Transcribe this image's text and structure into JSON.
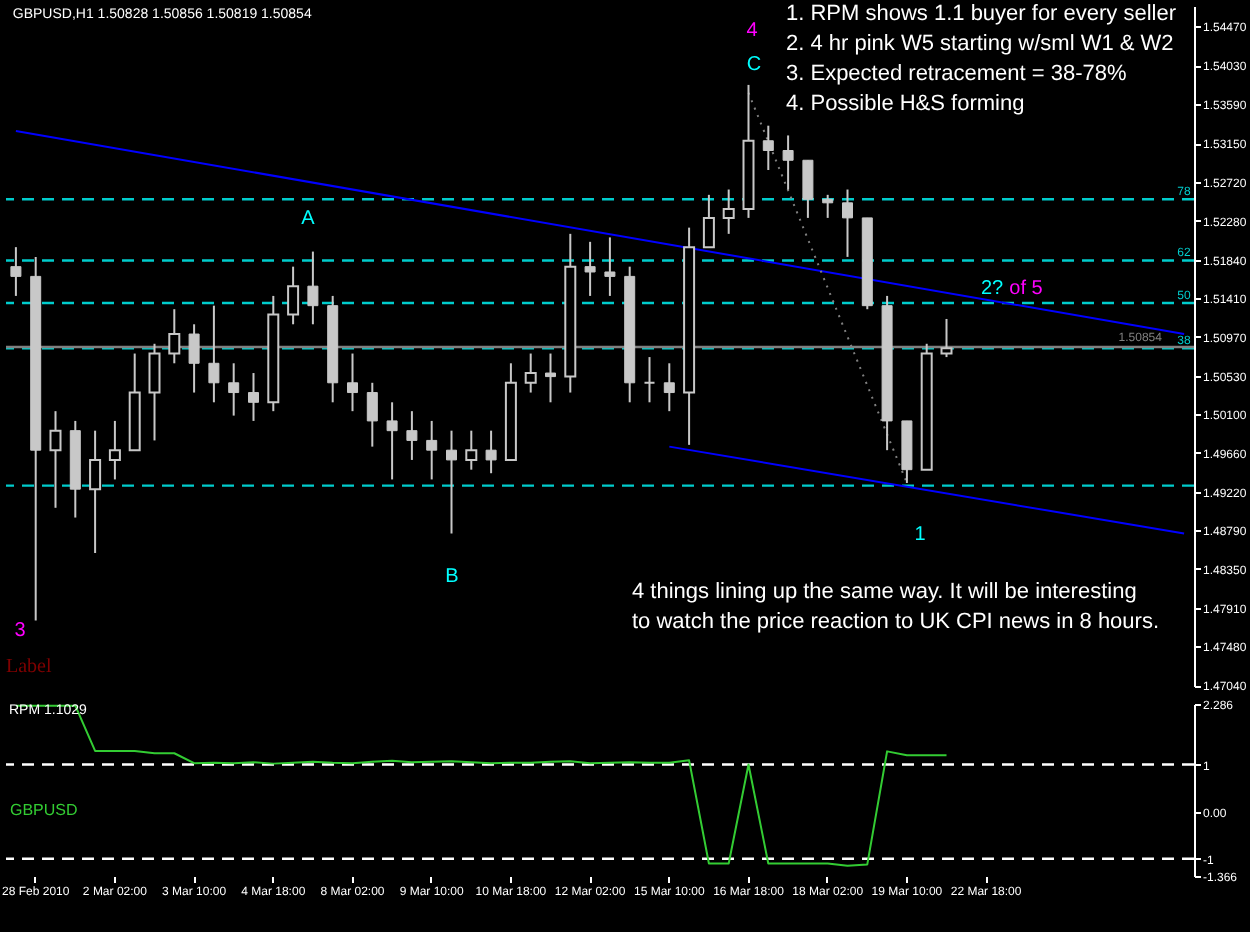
{
  "chart_data": [
    {
      "type": "candlestick",
      "title": "GBPUSD,H1 1.50828 1.50856 1.50819 1.50854",
      "color": "#c8c8c8",
      "categories": [
        null,
        null,
        null,
        null,
        null,
        null,
        null,
        null,
        null,
        null,
        null,
        null,
        null,
        null,
        null,
        null,
        null,
        null,
        null,
        null,
        null,
        null,
        null,
        null,
        null,
        null,
        null,
        null,
        null,
        null,
        null,
        null,
        null,
        null,
        null,
        null,
        null,
        null,
        null,
        null,
        null,
        null,
        null,
        null,
        null,
        null,
        null,
        null,
        null,
        null,
        null,
        null,
        null,
        null,
        null,
        null,
        null,
        null,
        null,
        null
      ],
      "ohlc": [
        [
          1.5176,
          1.5198,
          1.5143,
          1.5165
        ],
        [
          1.5165,
          1.5187,
          1.4777,
          1.4969
        ],
        [
          1.4969,
          1.5013,
          1.4904,
          1.4991
        ],
        [
          1.4991,
          1.5002,
          1.4893,
          1.4925
        ],
        [
          1.4925,
          1.4991,
          1.4853,
          1.4958
        ],
        [
          1.4958,
          1.5002,
          1.4936,
          1.4969
        ],
        [
          1.4969,
          1.5078,
          1.4969,
          1.5034
        ],
        [
          1.5034,
          1.5089,
          1.498,
          1.5078
        ],
        [
          1.5078,
          1.5128,
          1.5067,
          1.51
        ],
        [
          1.51,
          1.5111,
          1.5034,
          1.5067
        ],
        [
          1.5067,
          1.5132,
          1.5023,
          1.5045
        ],
        [
          1.5045,
          1.5067,
          1.5008,
          1.5034
        ],
        [
          1.5034,
          1.5056,
          1.5002,
          1.5023
        ],
        [
          1.5023,
          1.5143,
          1.5013,
          1.5122
        ],
        [
          1.5122,
          1.5176,
          1.5111,
          1.5154
        ],
        [
          1.5154,
          1.5193,
          1.5111,
          1.5132
        ],
        [
          1.5132,
          1.5143,
          1.5023,
          1.5045
        ],
        [
          1.5045,
          1.5078,
          1.5013,
          1.5034
        ],
        [
          1.5034,
          1.5045,
          1.4973,
          1.5002
        ],
        [
          1.5002,
          1.5023,
          1.4936,
          1.4991
        ],
        [
          1.4991,
          1.5013,
          1.4958,
          1.498
        ],
        [
          1.498,
          1.5002,
          1.4936,
          1.4969
        ],
        [
          1.4969,
          1.4991,
          1.4875,
          1.4958
        ],
        [
          1.4958,
          1.4991,
          1.4947,
          1.4969
        ],
        [
          1.4969,
          1.4991,
          1.4943,
          1.4958
        ],
        [
          1.4958,
          1.5067,
          1.4958,
          1.5045
        ],
        [
          1.5045,
          1.5078,
          1.5034,
          1.5056
        ],
        [
          1.5056,
          1.5078,
          1.5023,
          1.5052
        ],
        [
          1.5052,
          1.5213,
          1.5034,
          1.5176
        ],
        [
          1.5176,
          1.5204,
          1.5143,
          1.517
        ],
        [
          1.517,
          1.5209,
          1.5143,
          1.5165
        ],
        [
          1.5165,
          1.5176,
          1.5023,
          1.5045
        ],
        [
          1.5045,
          1.5074,
          1.5023,
          1.5045
        ],
        [
          1.5045,
          1.5067,
          1.5013,
          1.5034
        ],
        [
          1.5034,
          1.522,
          1.4975,
          1.5198
        ],
        [
          1.5198,
          1.5257,
          1.5198,
          1.5231
        ],
        [
          1.5231,
          1.5263,
          1.5213,
          1.5241
        ],
        [
          1.5241,
          1.5381,
          1.5231,
          1.5318
        ],
        [
          1.5318,
          1.5335,
          1.5285,
          1.5307
        ],
        [
          1.5307,
          1.5324,
          1.5263,
          1.5296
        ],
        [
          1.5296,
          1.5296,
          1.5231,
          1.5252
        ],
        [
          1.5252,
          1.5257,
          1.5231,
          1.5248
        ],
        [
          1.5248,
          1.5263,
          1.5187,
          1.5231
        ],
        [
          1.5231,
          1.5231,
          1.5128,
          1.5132
        ],
        [
          1.5132,
          1.5143,
          1.4969,
          1.5002
        ],
        [
          1.5002,
          1.5002,
          1.4932,
          1.4947
        ],
        [
          1.4947,
          1.5089,
          1.4947,
          1.5078
        ],
        [
          1.5078,
          1.5117,
          1.5074,
          1.5084
        ],
        null,
        null,
        null,
        null,
        null,
        null,
        null,
        null,
        null,
        null,
        null,
        null
      ],
      "series": [
        {
          "type": "line",
          "color": "#0000ff",
          "values": [
            1.5329,
            null,
            null,
            null,
            null,
            null,
            null,
            null,
            null,
            null,
            null,
            null,
            null,
            null,
            null,
            null,
            null,
            null,
            null,
            null,
            null,
            null,
            null,
            null,
            null,
            null,
            null,
            null,
            null,
            null,
            null,
            null,
            null,
            null,
            null,
            null,
            null,
            null,
            null,
            null,
            null,
            null,
            null,
            null,
            null,
            null,
            null,
            null,
            null,
            null,
            null,
            null,
            null,
            null,
            null,
            null,
            null,
            null,
            null,
            1.51
          ]
        },
        {
          "type": "line",
          "color": "#0000ff",
          "values": [
            null,
            null,
            null,
            null,
            null,
            null,
            null,
            null,
            null,
            null,
            null,
            null,
            null,
            null,
            null,
            null,
            null,
            null,
            null,
            null,
            null,
            null,
            null,
            null,
            null,
            null,
            null,
            null,
            null,
            null,
            null,
            null,
            null,
            1.4973,
            null,
            null,
            null,
            null,
            null,
            null,
            null,
            null,
            null,
            null,
            null,
            null,
            null,
            null,
            null,
            null,
            null,
            null,
            null,
            null,
            null,
            null,
            null,
            null,
            null,
            1.4875
          ]
        },
        {
          "type": "line",
          "color": "#808080",
          "line_style": "dotted",
          "values": [
            null,
            null,
            null,
            null,
            null,
            null,
            null,
            null,
            null,
            null,
            null,
            null,
            null,
            null,
            null,
            null,
            null,
            null,
            null,
            null,
            null,
            null,
            null,
            null,
            null,
            null,
            null,
            null,
            null,
            null,
            null,
            null,
            null,
            null,
            null,
            null,
            null,
            1.5372,
            null,
            null,
            null,
            null,
            null,
            null,
            null,
            1.4932,
            null,
            null,
            null,
            null,
            null,
            null,
            null,
            null,
            null,
            null,
            null,
            null,
            null,
            null
          ]
        }
      ],
      "ref_lines": [
        {
          "axis": "y",
          "value": 1.5252,
          "color": "#00cccc",
          "line_style": "dashed"
        },
        {
          "axis": "y",
          "value": 1.5183,
          "color": "#00cccc",
          "line_style": "dashed"
        },
        {
          "axis": "y",
          "value": 1.5135,
          "color": "#00cccc",
          "line_style": "dashed"
        },
        {
          "axis": "y",
          "value": 1.5084,
          "color": "#00cccc",
          "line_style": "dashed"
        },
        {
          "axis": "y",
          "value": 1.4929,
          "color": "#00cccc",
          "line_style": "dashed"
        },
        {
          "axis": "y",
          "value": 1.50854,
          "label": "1.50854",
          "color": "#808080",
          "line_style": "solid"
        }
      ],
      "annotations": [
        "A",
        "B",
        "C",
        "1",
        "2?",
        "3",
        "4",
        "of 5",
        {
          "text": "78",
          "y": 1.5252
        },
        {
          "text": "62",
          "y": 1.5183
        },
        {
          "text": "50",
          "y": 1.5135
        },
        {
          "text": "38",
          "y": 1.5084
        },
        "1.   RPM shows 1.1 buyer for every seller",
        "2.   4 hr pink W5 starting w/sml W1 & W2",
        "3.   Expected retracement = 38-78%",
        "4.   Possible H&S forming",
        "4 things lining up the same way.  It will be interesting",
        "to watch the price reaction to UK CPI news in 8 hours.",
        "Label"
      ],
      "ylim": [
        1.4703,
        1.547
      ],
      "yticks": [
        {
          "value": 1.5447,
          "label": "1.54470"
        },
        {
          "value": 1.5403,
          "label": "1.54030"
        },
        {
          "value": 1.5359,
          "label": "1.53590"
        },
        {
          "value": 1.5315,
          "label": "1.53150"
        },
        {
          "value": 1.5272,
          "label": "1.52720"
        },
        {
          "value": 1.5228,
          "label": "1.52280"
        },
        {
          "value": 1.5184,
          "label": "1.51840"
        },
        {
          "value": 1.5141,
          "label": "1.51410"
        },
        {
          "value": 1.5097,
          "label": "1.50970"
        },
        {
          "value": 1.5053,
          "label": "1.50530"
        },
        {
          "value": 1.501,
          "label": "1.50100"
        },
        {
          "value": 1.4966,
          "label": "1.49660"
        },
        {
          "value": 1.4922,
          "label": "1.49220"
        },
        {
          "value": 1.4879,
          "label": "1.48790"
        },
        {
          "value": 1.4835,
          "label": "1.48350"
        },
        {
          "value": 1.4791,
          "label": "1.47910"
        },
        {
          "value": 1.4748,
          "label": "1.47480"
        },
        {
          "value": 1.4704,
          "label": "1.47040"
        }
      ],
      "tick_labels": "y"
    },
    {
      "type": "line",
      "title": "RPM 1.1029",
      "marker": "none",
      "categories": [
        null,
        "28 Feb 2010",
        null,
        null,
        null,
        "2 Mar 02:00",
        null,
        null,
        null,
        "3 Mar 10:00",
        null,
        null,
        null,
        "4 Mar 18:00",
        null,
        null,
        null,
        "8 Mar 02:00",
        null,
        null,
        null,
        "9 Mar 10:00",
        null,
        null,
        null,
        "10 Mar 18:00",
        null,
        null,
        null,
        "12 Mar 02:00",
        null,
        null,
        null,
        "15 Mar 10:00",
        null,
        null,
        null,
        "16 Mar 18:00",
        null,
        null,
        null,
        "18 Mar 02:00",
        null,
        null,
        null,
        "19 Mar 10:00",
        null,
        null,
        null,
        "22 Mar 18:00",
        null,
        null,
        null,
        null,
        null,
        null,
        null,
        null,
        null,
        null
      ],
      "series": [
        {
          "name": "GBPUSD",
          "color": "#33cc33",
          "values": [
            2.25,
            2.25,
            2.25,
            2.25,
            1.29,
            1.29,
            1.29,
            1.24,
            1.24,
            1.03,
            1.04,
            1.03,
            1.05,
            1.02,
            1.04,
            1.06,
            1.04,
            1.03,
            1.06,
            1.08,
            1.05,
            1.06,
            1.07,
            1.05,
            1.03,
            1.04,
            1.04,
            1.06,
            1.07,
            1.03,
            1.04,
            1.05,
            1.04,
            1.04,
            1.09,
            -1.1,
            -1.1,
            1.0,
            -1.1,
            -1.1,
            -1.1,
            -1.1,
            -1.15,
            -1.12,
            1.28,
            1.2,
            1.2,
            1.2,
            null,
            null,
            null,
            null,
            null,
            null,
            null,
            null,
            null,
            null,
            null,
            null
          ]
        }
      ],
      "ref_lines": [
        {
          "axis": "y",
          "value": 1,
          "color": "#ffffff",
          "line_style": "dashed"
        },
        {
          "axis": "y",
          "value": -1,
          "color": "#ffffff",
          "line_style": "dashed"
        }
      ],
      "ylim": [
        -1.366,
        2.286
      ],
      "yticks": [
        2.286,
        1,
        {
          "value": 0,
          "label": "0.00"
        },
        -1,
        -1.366
      ]
    }
  ]
}
